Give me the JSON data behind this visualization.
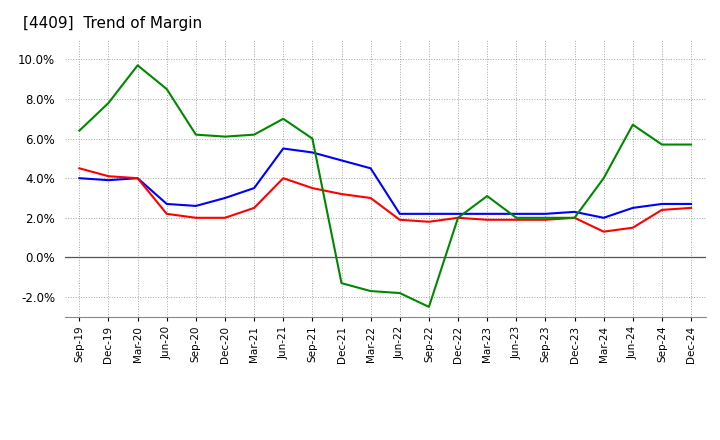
{
  "title": "[4409]  Trend of Margin",
  "x_labels": [
    "Sep-19",
    "Dec-19",
    "Mar-20",
    "Jun-20",
    "Sep-20",
    "Dec-20",
    "Mar-21",
    "Jun-21",
    "Sep-21",
    "Dec-21",
    "Mar-22",
    "Jun-22",
    "Sep-22",
    "Dec-22",
    "Mar-23",
    "Jun-23",
    "Sep-23",
    "Dec-23",
    "Mar-24",
    "Jun-24",
    "Sep-24",
    "Dec-24"
  ],
  "ordinary_income": [
    4.0,
    3.9,
    4.0,
    2.7,
    2.6,
    3.0,
    3.5,
    5.5,
    5.3,
    4.9,
    4.5,
    2.2,
    2.2,
    2.2,
    2.2,
    2.2,
    2.2,
    2.3,
    2.0,
    2.5,
    2.7,
    2.7
  ],
  "net_income": [
    4.5,
    4.1,
    4.0,
    2.2,
    2.0,
    2.0,
    2.5,
    4.0,
    3.5,
    3.2,
    3.0,
    1.9,
    1.8,
    2.0,
    1.9,
    1.9,
    1.9,
    2.0,
    1.3,
    1.5,
    2.4,
    2.5
  ],
  "operating_cashflow": [
    6.4,
    7.8,
    9.7,
    8.5,
    6.2,
    6.1,
    6.2,
    7.0,
    6.0,
    -1.3,
    -1.7,
    -1.8,
    -2.5,
    2.0,
    3.1,
    2.0,
    2.0,
    2.0,
    4.0,
    6.7,
    5.7,
    5.7
  ],
  "colors": {
    "ordinary_income": "#0000ff",
    "net_income": "#ff0000",
    "operating_cashflow": "#008800"
  },
  "ylim": [
    -3.0,
    11.0
  ],
  "yticks": [
    -2.0,
    0.0,
    2.0,
    4.0,
    6.0,
    8.0,
    10.0
  ],
  "background_color": "#ffffff",
  "grid_color": "#999999",
  "title_fontsize": 11
}
